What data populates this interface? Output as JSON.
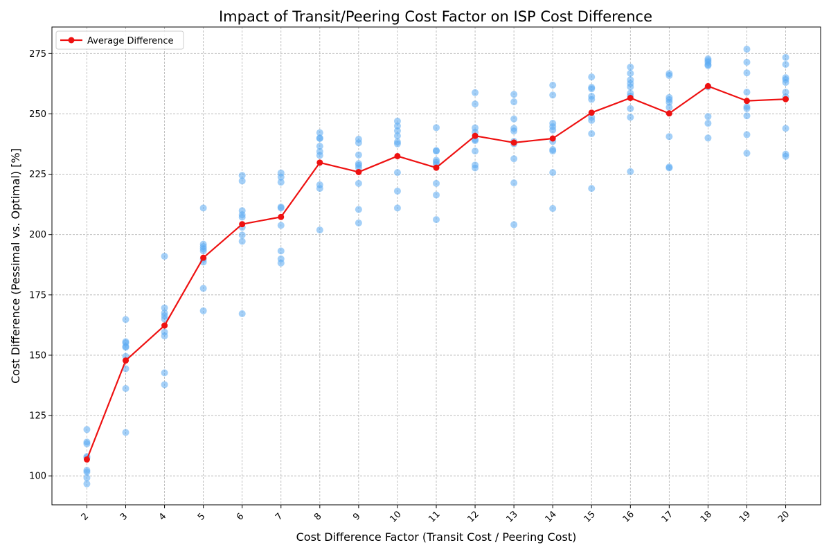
{
  "chart_data": {
    "type": "scatter",
    "title": "Impact of Transit/Peering Cost Factor on ISP Cost Difference",
    "xlabel": "Cost Difference Factor (Transit Cost / Peering Cost)",
    "ylabel": "Cost Difference (Pessimal vs. Optimal) [%]",
    "x_ticks": [
      2,
      3,
      4,
      5,
      6,
      7,
      8,
      9,
      10,
      11,
      12,
      13,
      14,
      15,
      16,
      17,
      18,
      19,
      20
    ],
    "y_ticks": [
      100,
      125,
      150,
      175,
      200,
      225,
      250,
      275
    ],
    "xlim": [
      1.1,
      20.9
    ],
    "ylim": [
      88,
      286
    ],
    "grid": true,
    "legend": {
      "placement": "top-left",
      "entries": [
        "Average Difference"
      ]
    },
    "colors": {
      "scatter": "#5aaaf2",
      "average_line": "#ee1111"
    },
    "series": [
      {
        "name": "Average Difference",
        "kind": "line",
        "x": [
          2,
          3,
          4,
          5,
          6,
          7,
          8,
          9,
          10,
          11,
          12,
          13,
          14,
          15,
          16,
          17,
          18,
          19,
          20
        ],
        "y": [
          106.8,
          147.8,
          162.3,
          190.4,
          204.3,
          207.3,
          229.8,
          225.9,
          232.5,
          227.7,
          240.9,
          238.1,
          239.8,
          250.5,
          256.6,
          250.2,
          261.5,
          255.4,
          256.1
        ]
      },
      {
        "name": "",
        "kind": "scatter",
        "points": [
          [
            2,
            119.2
          ],
          [
            2,
            114
          ],
          [
            2,
            113.3
          ],
          [
            2,
            108
          ],
          [
            2,
            107.5
          ],
          [
            2,
            102.3
          ],
          [
            2,
            101.6
          ],
          [
            2,
            99.2
          ],
          [
            2,
            96.7
          ],
          [
            3,
            164.8
          ],
          [
            3,
            155.6
          ],
          [
            3,
            155.1
          ],
          [
            3,
            153.6
          ],
          [
            3,
            153.3
          ],
          [
            3,
            149.5
          ],
          [
            3,
            144.4
          ],
          [
            3,
            136.2
          ],
          [
            3,
            118
          ],
          [
            4,
            191
          ],
          [
            4,
            169.6
          ],
          [
            4,
            167.5
          ],
          [
            4,
            166.3
          ],
          [
            4,
            165
          ],
          [
            4,
            159.6
          ],
          [
            4,
            158
          ],
          [
            4,
            142.7
          ],
          [
            4,
            137.8
          ],
          [
            5,
            211
          ],
          [
            5,
            196
          ],
          [
            5,
            195
          ],
          [
            5,
            194.1
          ],
          [
            5,
            193.2
          ],
          [
            5,
            189.8
          ],
          [
            5,
            188.6
          ],
          [
            5,
            177.7
          ],
          [
            5,
            168.4
          ],
          [
            6,
            224.5
          ],
          [
            6,
            222.2
          ],
          [
            6,
            209.9
          ],
          [
            6,
            208.2
          ],
          [
            6,
            207.2
          ],
          [
            6,
            203
          ],
          [
            6,
            199.8
          ],
          [
            6,
            197.2
          ],
          [
            6,
            167.2
          ],
          [
            7,
            225.5
          ],
          [
            7,
            223.8
          ],
          [
            7,
            221.7
          ],
          [
            7,
            211.4
          ],
          [
            7,
            211
          ],
          [
            7,
            203.8
          ],
          [
            7,
            193.2
          ],
          [
            7,
            189.9
          ],
          [
            7,
            188.2
          ],
          [
            8,
            242.2
          ],
          [
            8,
            240
          ],
          [
            8,
            239.8
          ],
          [
            8,
            236.6
          ],
          [
            8,
            234.4
          ],
          [
            8,
            232.8
          ],
          [
            8,
            220.6
          ],
          [
            8,
            219.1
          ],
          [
            8,
            201.9
          ],
          [
            9,
            239.5
          ],
          [
            9,
            238
          ],
          [
            9,
            233
          ],
          [
            9,
            229.4
          ],
          [
            9,
            228.7
          ],
          [
            9,
            227.7
          ],
          [
            9,
            221.2
          ],
          [
            9,
            210.4
          ],
          [
            9,
            204.8
          ],
          [
            10,
            247
          ],
          [
            10,
            245
          ],
          [
            10,
            243
          ],
          [
            10,
            240.9
          ],
          [
            10,
            238.4
          ],
          [
            10,
            237.6
          ],
          [
            10,
            225.7
          ],
          [
            10,
            218
          ],
          [
            10,
            211
          ],
          [
            11,
            244.3
          ],
          [
            11,
            234.8
          ],
          [
            11,
            234.6
          ],
          [
            11,
            230.8
          ],
          [
            11,
            230
          ],
          [
            11,
            229.1
          ],
          [
            11,
            221.2
          ],
          [
            11,
            216.4
          ],
          [
            11,
            206.2
          ],
          [
            12,
            258.8
          ],
          [
            12,
            254.1
          ],
          [
            12,
            244.2
          ],
          [
            12,
            242.4
          ],
          [
            12,
            239.4
          ],
          [
            12,
            238.9
          ],
          [
            12,
            234.6
          ],
          [
            12,
            228.8
          ],
          [
            12,
            227.6
          ],
          [
            13,
            258.1
          ],
          [
            13,
            255
          ],
          [
            13,
            247.9
          ],
          [
            13,
            244
          ],
          [
            13,
            242.9
          ],
          [
            13,
            238.6
          ],
          [
            13,
            237.6
          ],
          [
            13,
            231.4
          ],
          [
            13,
            221.4
          ],
          [
            13,
            204.1
          ],
          [
            14,
            261.9
          ],
          [
            14,
            257.8
          ],
          [
            14,
            246.1
          ],
          [
            14,
            244.7
          ],
          [
            14,
            243.3
          ],
          [
            14,
            238.6
          ],
          [
            14,
            235.2
          ],
          [
            14,
            234.6
          ],
          [
            14,
            225.7
          ],
          [
            14,
            210.8
          ],
          [
            15,
            265.3
          ],
          [
            15,
            261
          ],
          [
            15,
            260.4
          ],
          [
            15,
            257.3
          ],
          [
            15,
            256
          ],
          [
            15,
            248.6
          ],
          [
            15,
            247.3
          ],
          [
            15,
            241.8
          ],
          [
            15,
            219.1
          ],
          [
            16,
            269.4
          ],
          [
            16,
            266.8
          ],
          [
            16,
            264.1
          ],
          [
            16,
            262.6
          ],
          [
            16,
            261.2
          ],
          [
            16,
            258.6
          ],
          [
            16,
            257.4
          ],
          [
            16,
            252.2
          ],
          [
            16,
            248.6
          ],
          [
            16,
            226.1
          ],
          [
            17,
            266.7
          ],
          [
            17,
            265.9
          ],
          [
            17,
            256.8
          ],
          [
            17,
            255.9
          ],
          [
            17,
            254.8
          ],
          [
            17,
            252.7
          ],
          [
            17,
            240.6
          ],
          [
            17,
            228
          ],
          [
            17,
            227.6
          ],
          [
            18,
            272.8
          ],
          [
            18,
            272.1
          ],
          [
            18,
            271.4
          ],
          [
            18,
            270.4
          ],
          [
            18,
            270
          ],
          [
            18,
            261.2
          ],
          [
            18,
            248.9
          ],
          [
            18,
            246.1
          ],
          [
            18,
            240
          ],
          [
            19,
            276.8
          ],
          [
            19,
            271.4
          ],
          [
            19,
            267
          ],
          [
            19,
            259
          ],
          [
            19,
            253
          ],
          [
            19,
            252.2
          ],
          [
            19,
            249.2
          ],
          [
            19,
            241.4
          ],
          [
            19,
            233.7
          ],
          [
            20,
            273.4
          ],
          [
            20,
            270.5
          ],
          [
            20,
            265
          ],
          [
            20,
            264.2
          ],
          [
            20,
            263
          ],
          [
            20,
            259
          ],
          [
            20,
            257
          ],
          [
            20,
            244
          ],
          [
            20,
            233.3
          ],
          [
            20,
            232.4
          ]
        ]
      }
    ]
  }
}
